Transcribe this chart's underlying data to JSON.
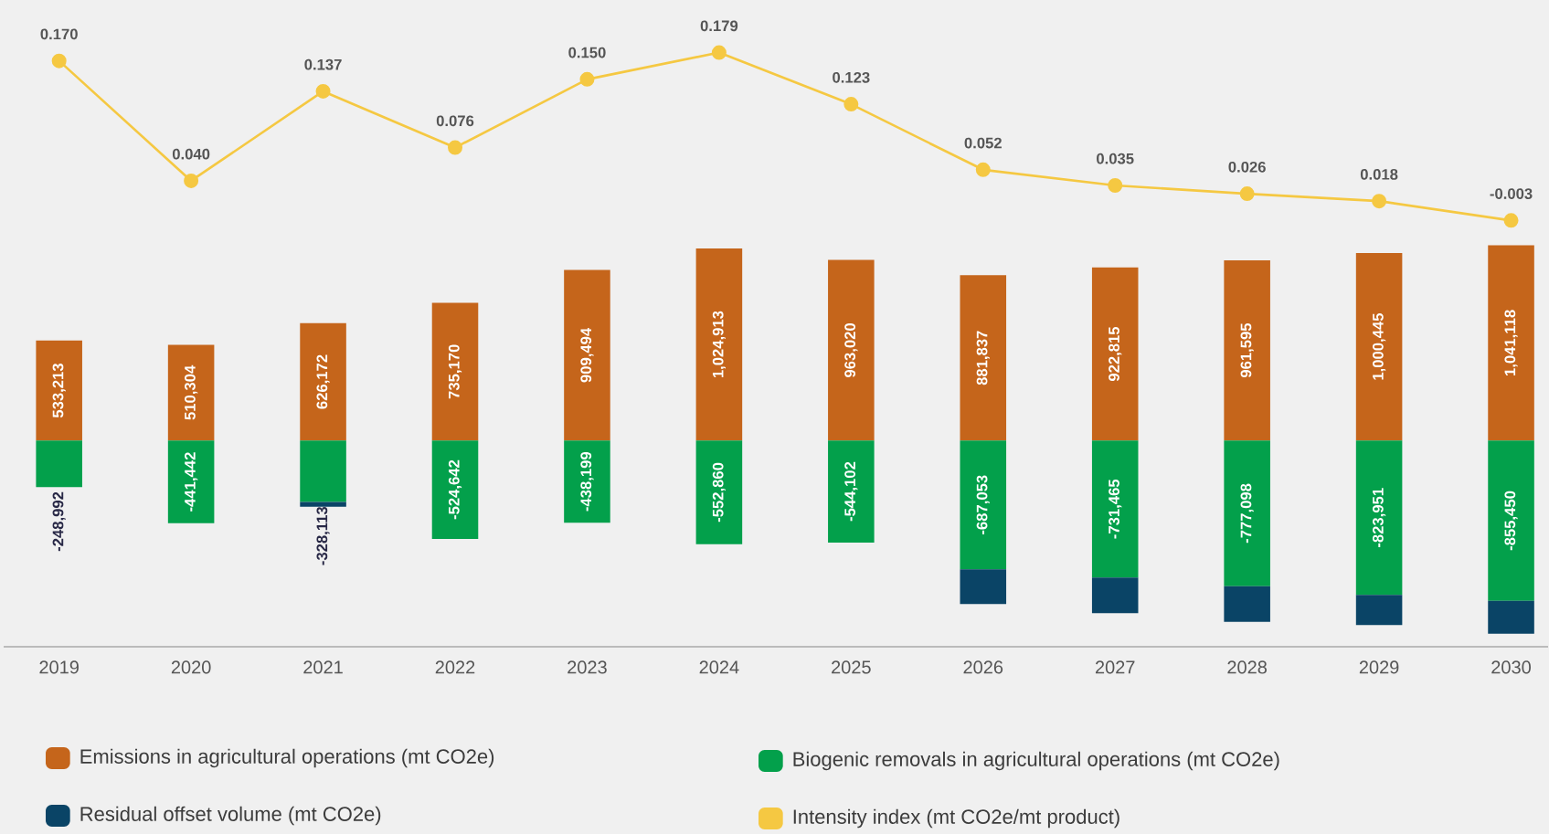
{
  "chart_data": {
    "type": "bar",
    "stacked": true,
    "legend": "bottom",
    "marker": "circle",
    "categories": [
      "2019",
      "2020",
      "2021",
      "2022",
      "2023",
      "2024",
      "2025",
      "2026",
      "2027",
      "2028",
      "2029",
      "2030"
    ],
    "ylim": [
      -1100000,
      2350000
    ],
    "y2lim": [
      -0.465,
      0.236
    ],
    "series": [
      {
        "name": "Emissions in agricultural operations (mt CO2e)",
        "color": "#c5651b",
        "values": [
          533213,
          510304,
          626172,
          735170,
          909494,
          1024913,
          963020,
          881837,
          922815,
          961595,
          1000445,
          1041118
        ],
        "value_labels": [
          "533,213",
          "510,304",
          "626,172",
          "735,170",
          "909,494",
          "1,024,913",
          "963,020",
          "881,837",
          "922,815",
          "961,595",
          "1,000,445",
          "1,041,118"
        ]
      },
      {
        "name": "Biogenic removals in agricultural operations (mt CO2e)",
        "color": "#03a04b",
        "values": [
          -248992,
          -441442,
          -328113,
          -524642,
          -438199,
          -552860,
          -544102,
          -687053,
          -731465,
          -777098,
          -823951,
          -855450
        ],
        "value_labels": [
          "-248,992",
          "-441,442",
          "-328,113",
          "-524,642",
          "-438,199",
          "-552,860",
          "-544,102",
          "-687,053",
          "-731,465",
          "-777,098",
          "-823,951",
          "-855,450"
        ]
      },
      {
        "name": "Residual offset volume (mt CO2e)",
        "color": "#0a4466",
        "values": [
          null,
          null,
          -25000,
          null,
          null,
          null,
          null,
          -185000,
          -190000,
          -190000,
          -160000,
          -175000
        ]
      },
      {
        "name": "Intensity index (mt CO2e/mt product)",
        "color": "#f5c842",
        "type": "line",
        "axis": "y2",
        "values": [
          0.17,
          0.04,
          0.137,
          0.076,
          0.15,
          0.179,
          0.123,
          0.052,
          0.035,
          0.026,
          0.018,
          -0.003
        ],
        "value_labels": [
          "0.170",
          "0.040",
          "0.137",
          "0.076",
          "0.150",
          "0.179",
          "0.123",
          "0.052",
          "0.035",
          "0.026",
          "0.018",
          "-0.003"
        ]
      }
    ]
  }
}
